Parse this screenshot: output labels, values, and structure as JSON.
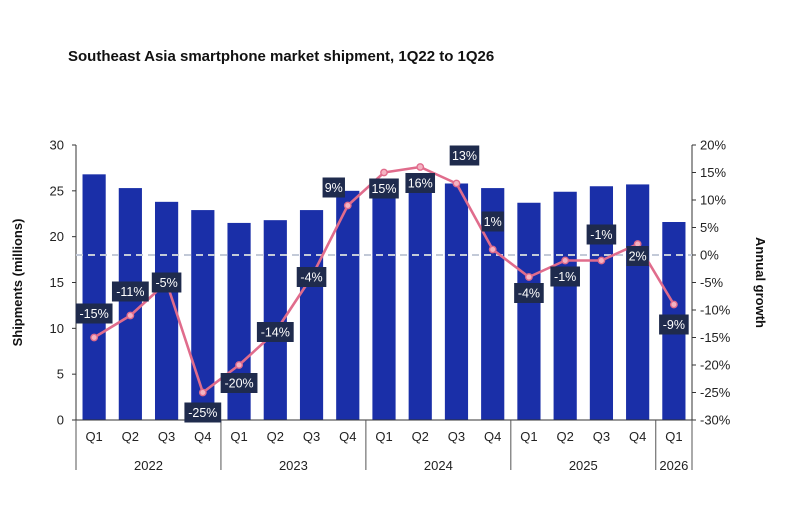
{
  "title": "Southeast Asia smartphone market shipment, 1Q22 to 1Q26",
  "chart_data": {
    "type": "bar+line",
    "title": "Southeast Asia smartphone market shipment, 1Q22 to 1Q26",
    "ylabel_left": "Shipments (millions)",
    "ylabel_right": "Annual growth",
    "ylim_left": [
      0,
      30
    ],
    "ylim_right": [
      -30,
      20
    ],
    "yticks_left": [
      "0",
      "5",
      "10",
      "15",
      "20",
      "25",
      "30"
    ],
    "yticks_right": [
      "-30%",
      "-25%",
      "-20%",
      "-15%",
      "-10%",
      "-5%",
      "0%",
      "5%",
      "10%",
      "15%",
      "20%"
    ],
    "quarters": [
      "Q1",
      "Q2",
      "Q3",
      "Q4",
      "Q1",
      "Q2",
      "Q3",
      "Q4",
      "Q1",
      "Q2",
      "Q3",
      "Q4",
      "Q1",
      "Q2",
      "Q3",
      "Q4",
      "Q1"
    ],
    "years": [
      {
        "label": "2022",
        "count": 4
      },
      {
        "label": "2023",
        "count": 4
      },
      {
        "label": "2024",
        "count": 4
      },
      {
        "label": "2025",
        "count": 4
      },
      {
        "label": "2026",
        "count": 1
      }
    ],
    "shipments": [
      26.8,
      25.3,
      23.8,
      22.9,
      21.5,
      21.8,
      22.9,
      25.0,
      25.9,
      25.8,
      25.8,
      25.3,
      23.7,
      24.9,
      25.5,
      25.7,
      21.6
    ],
    "growth": [
      -15,
      -11,
      -5,
      -25,
      -20,
      -14,
      -4,
      9,
      15,
      16,
      13,
      1,
      -4,
      -1,
      -1,
      2,
      -9
    ],
    "growth_labels": [
      "-15%",
      "-11%",
      "-5%",
      "-25%",
      "-20%",
      "-14%",
      "-4%",
      "9%",
      "15%",
      "16%",
      "13%",
      "1%",
      "-4%",
      "-1%",
      "-1%",
      "2%",
      "-9%"
    ],
    "grid": false,
    "zero_reference_line": true,
    "colors": {
      "bar": "#1a2fa8",
      "line": "#e06c8c",
      "marker_fill": "#f4b3c2",
      "label_box": "#1f2b4d",
      "zero_line": "#c3cad8"
    }
  }
}
